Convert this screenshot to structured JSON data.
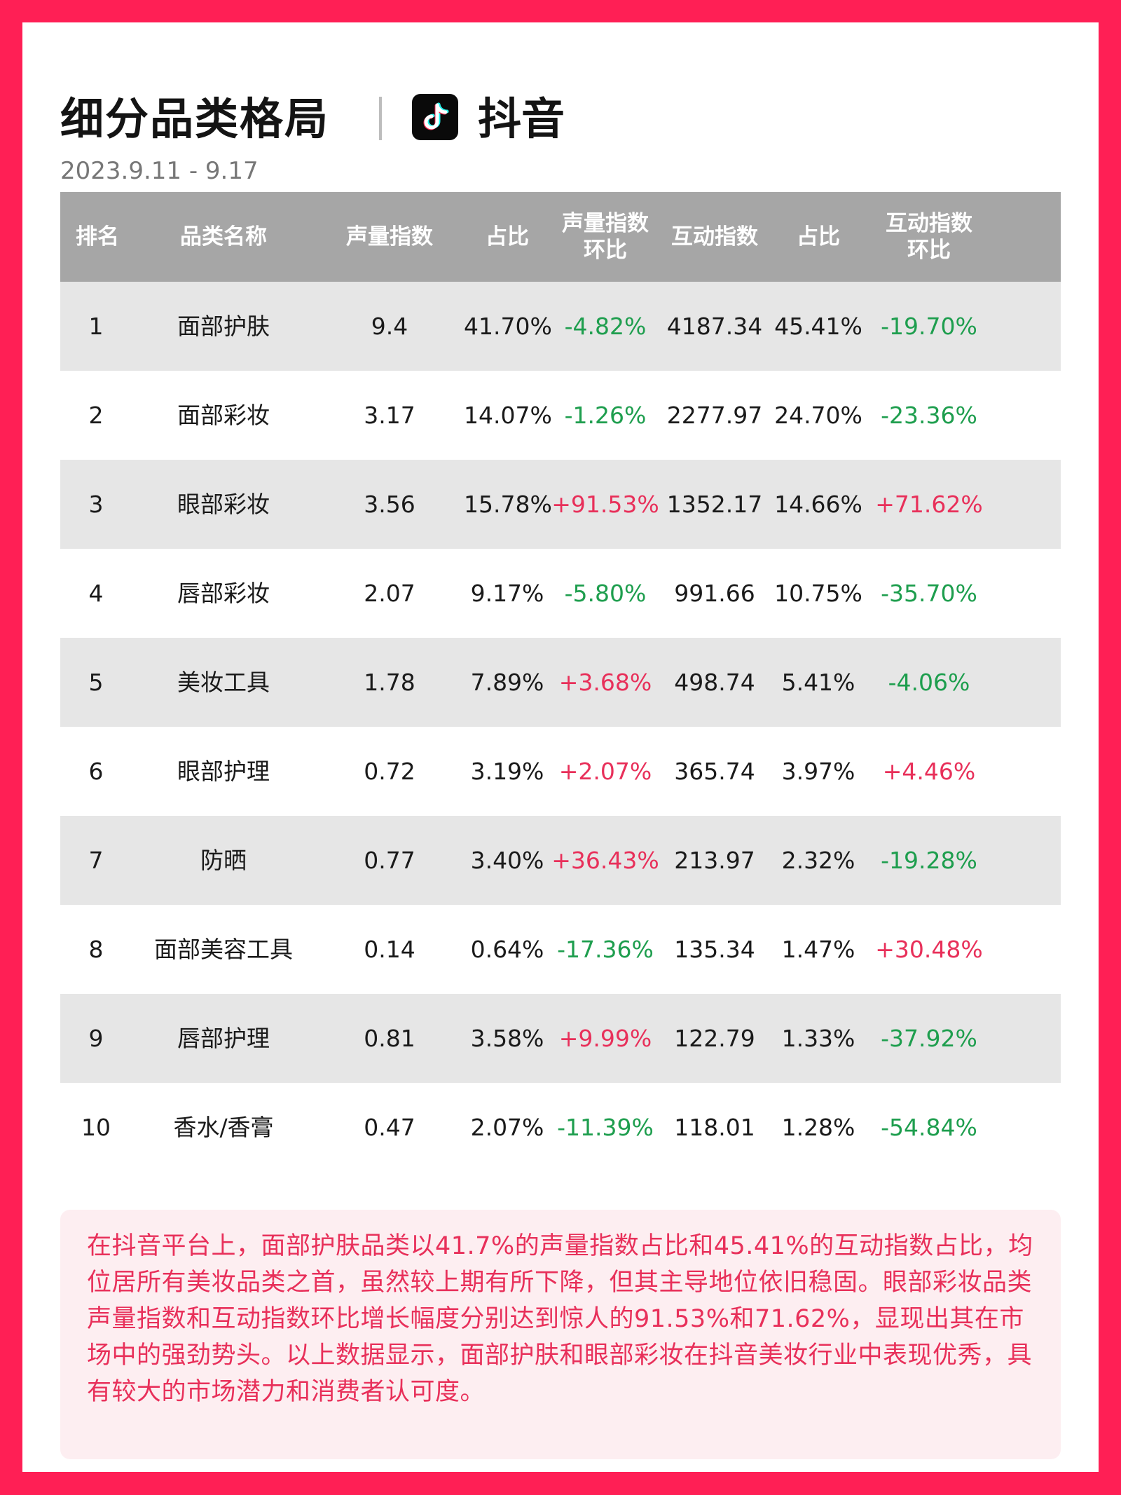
{
  "header": {
    "title": "细分品类格局",
    "brand": "抖音",
    "date": "2023.9.11 - 9.17"
  },
  "colors": {
    "frame": "#ff1f55",
    "header_bg": "#a6a6a6",
    "row_shade": "#e6e6e6",
    "positive": "#e8305a",
    "negative": "#1e9e4e",
    "note_bg": "#fdeef1"
  },
  "table": {
    "columns": {
      "rank": "排名",
      "category": "品类名称",
      "volume_index": "声量指数",
      "volume_share": "占比",
      "volume_mom_line1": "声量指数",
      "volume_mom_line2": "环比",
      "interaction_index": "互动指数",
      "interaction_share": "占比",
      "interaction_mom_line1": "互动指数",
      "interaction_mom_line2": "环比"
    },
    "rows": [
      {
        "rank": "1",
        "category": "面部护肤",
        "volume_index": "9.4",
        "volume_share": "41.70%",
        "volume_mom": "-4.82%",
        "interaction_index": "4187.34",
        "interaction_share": "45.41%",
        "interaction_mom": "-19.70%"
      },
      {
        "rank": "2",
        "category": "面部彩妆",
        "volume_index": "3.17",
        "volume_share": "14.07%",
        "volume_mom": "-1.26%",
        "interaction_index": "2277.97",
        "interaction_share": "24.70%",
        "interaction_mom": "-23.36%"
      },
      {
        "rank": "3",
        "category": "眼部彩妆",
        "volume_index": "3.56",
        "volume_share": "15.78%",
        "volume_mom": "+91.53%",
        "interaction_index": "1352.17",
        "interaction_share": "14.66%",
        "interaction_mom": "+71.62%"
      },
      {
        "rank": "4",
        "category": "唇部彩妆",
        "volume_index": "2.07",
        "volume_share": "9.17%",
        "volume_mom": "-5.80%",
        "interaction_index": "991.66",
        "interaction_share": "10.75%",
        "interaction_mom": "-35.70%"
      },
      {
        "rank": "5",
        "category": "美妆工具",
        "volume_index": "1.78",
        "volume_share": "7.89%",
        "volume_mom": "+3.68%",
        "interaction_index": "498.74",
        "interaction_share": "5.41%",
        "interaction_mom": "-4.06%"
      },
      {
        "rank": "6",
        "category": "眼部护理",
        "volume_index": "0.72",
        "volume_share": "3.19%",
        "volume_mom": "+2.07%",
        "interaction_index": "365.74",
        "interaction_share": "3.97%",
        "interaction_mom": "+4.46%"
      },
      {
        "rank": "7",
        "category": "防晒",
        "volume_index": "0.77",
        "volume_share": "3.40%",
        "volume_mom": "+36.43%",
        "interaction_index": "213.97",
        "interaction_share": "2.32%",
        "interaction_mom": "-19.28%"
      },
      {
        "rank": "8",
        "category": "面部美容工具",
        "volume_index": "0.14",
        "volume_share": "0.64%",
        "volume_mom": "-17.36%",
        "interaction_index": "135.34",
        "interaction_share": "1.47%",
        "interaction_mom": "+30.48%"
      },
      {
        "rank": "9",
        "category": "唇部护理",
        "volume_index": "0.81",
        "volume_share": "3.58%",
        "volume_mom": "+9.99%",
        "interaction_index": "122.79",
        "interaction_share": "1.33%",
        "interaction_mom": "-37.92%"
      },
      {
        "rank": "10",
        "category": "香水/香膏",
        "volume_index": "0.47",
        "volume_share": "2.07%",
        "volume_mom": "-11.39%",
        "interaction_index": "118.01",
        "interaction_share": "1.28%",
        "interaction_mom": "-54.84%"
      }
    ]
  },
  "note": {
    "text": "在抖音平台上，面部护肤品类以41.7%的声量指数占比和45.41%的互动指数占比，均位居所有美妆品类之首，虽然较上期有所下降，但其主导地位依旧稳固。眼部彩妆品类声量指数和互动指数环比增长幅度分别达到惊人的91.53%和71.62%，显现出其在市场中的强劲势头。以上数据显示，面部护肤和眼部彩妆在抖音美妆行业中表现优秀，具有较大的市场潜力和消费者认可度。"
  }
}
